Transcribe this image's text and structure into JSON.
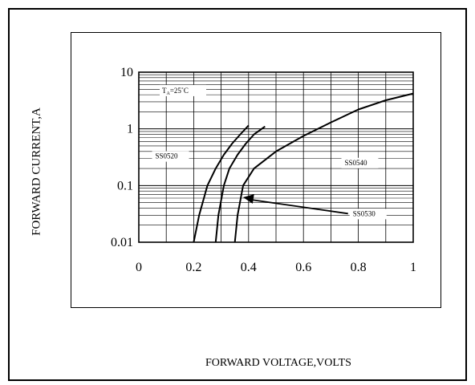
{
  "chart_data": {
    "type": "line",
    "title": "",
    "xlabel": "FORWARD VOLTAGE,VOLTS",
    "ylabel": "FORWARD CURRENT,A",
    "xlim": [
      0,
      1
    ],
    "ylim": [
      0.01,
      10
    ],
    "yscale": "log",
    "grid": true,
    "x_ticks": [
      "0",
      "0.2",
      "0.4",
      "0.6",
      "0.8",
      "1"
    ],
    "y_ticks": [
      "0.01",
      "0.1",
      "1",
      "10"
    ],
    "condition_label_base": "T",
    "condition_label_sub": "A",
    "condition_label_rest": "=25˚C",
    "series": [
      {
        "name": "SS0520",
        "x": [
          0.2,
          0.22,
          0.25,
          0.28,
          0.31,
          0.34,
          0.37,
          0.4
        ],
        "y": [
          0.01,
          0.03,
          0.1,
          0.2,
          0.35,
          0.55,
          0.8,
          1.15
        ]
      },
      {
        "name": "SS0530",
        "x": [
          0.28,
          0.29,
          0.31,
          0.33,
          0.36,
          0.39,
          0.42,
          0.46
        ],
        "y": [
          0.01,
          0.03,
          0.1,
          0.2,
          0.35,
          0.55,
          0.8,
          1.1
        ]
      },
      {
        "name": "SS0540",
        "x": [
          0.35,
          0.36,
          0.38,
          0.42,
          0.5,
          0.6,
          0.7,
          0.8,
          0.9,
          1.0
        ],
        "y": [
          0.01,
          0.03,
          0.1,
          0.2,
          0.4,
          0.75,
          1.3,
          2.2,
          3.2,
          4.2
        ]
      }
    ],
    "annotations": [
      {
        "text": "SS0520",
        "x": 0.06,
        "y": 0.3
      },
      {
        "text": "SS0540",
        "x": 0.75,
        "y": 0.23
      },
      {
        "text": "SS0530",
        "x": 0.78,
        "y": 0.029,
        "arrow_to": {
          "x": 0.38,
          "y": 0.062
        }
      }
    ]
  }
}
